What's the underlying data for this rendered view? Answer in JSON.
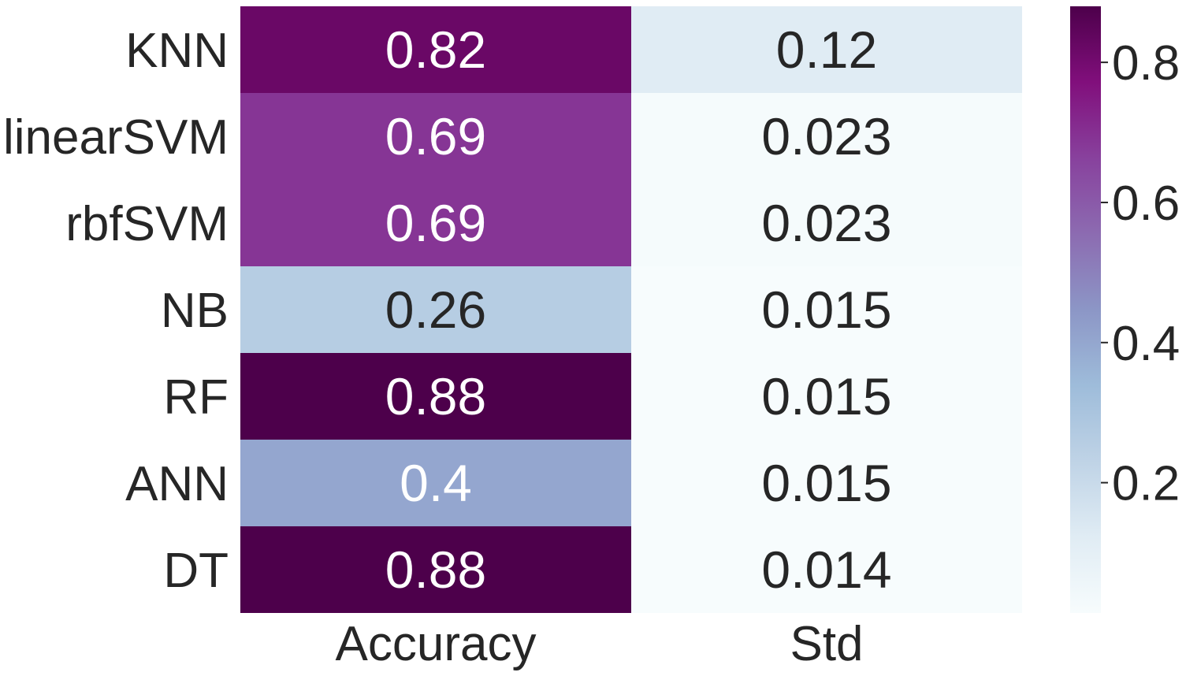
{
  "chart_data": {
    "type": "heatmap",
    "title": "",
    "rows": [
      "KNN",
      "linearSVM",
      "rbfSVM",
      "NB",
      "RF",
      "ANN",
      "DT"
    ],
    "columns": [
      "Accuracy",
      "Std"
    ],
    "values": [
      [
        0.82,
        0.12
      ],
      [
        0.69,
        0.023
      ],
      [
        0.69,
        0.023
      ],
      [
        0.26,
        0.015
      ],
      [
        0.88,
        0.015
      ],
      [
        0.4,
        0.015
      ],
      [
        0.88,
        0.014
      ]
    ],
    "annotations": [
      [
        "0.82",
        "0.12"
      ],
      [
        "0.69",
        "0.023"
      ],
      [
        "0.69",
        "0.023"
      ],
      [
        "0.26",
        "0.015"
      ],
      [
        "0.88",
        "0.015"
      ],
      [
        "0.4",
        "0.015"
      ],
      [
        "0.88",
        "0.014"
      ]
    ],
    "colormap": "BuPu",
    "colormap_stops": [
      "#f7fcfd",
      "#e0ecf4",
      "#bfd3e6",
      "#9ebcda",
      "#8c96c6",
      "#8c6bb1",
      "#88419d",
      "#810f7c",
      "#4d004b"
    ],
    "value_range": [
      0.014,
      0.88
    ],
    "colorbar": {
      "ticks": [
        0.2,
        0.4,
        0.6,
        0.8
      ],
      "tick_labels": [
        "0.2",
        "0.4",
        "0.6",
        "0.8"
      ]
    },
    "annot_light_color": "#ffffff",
    "annot_dark_color": "#262626"
  }
}
